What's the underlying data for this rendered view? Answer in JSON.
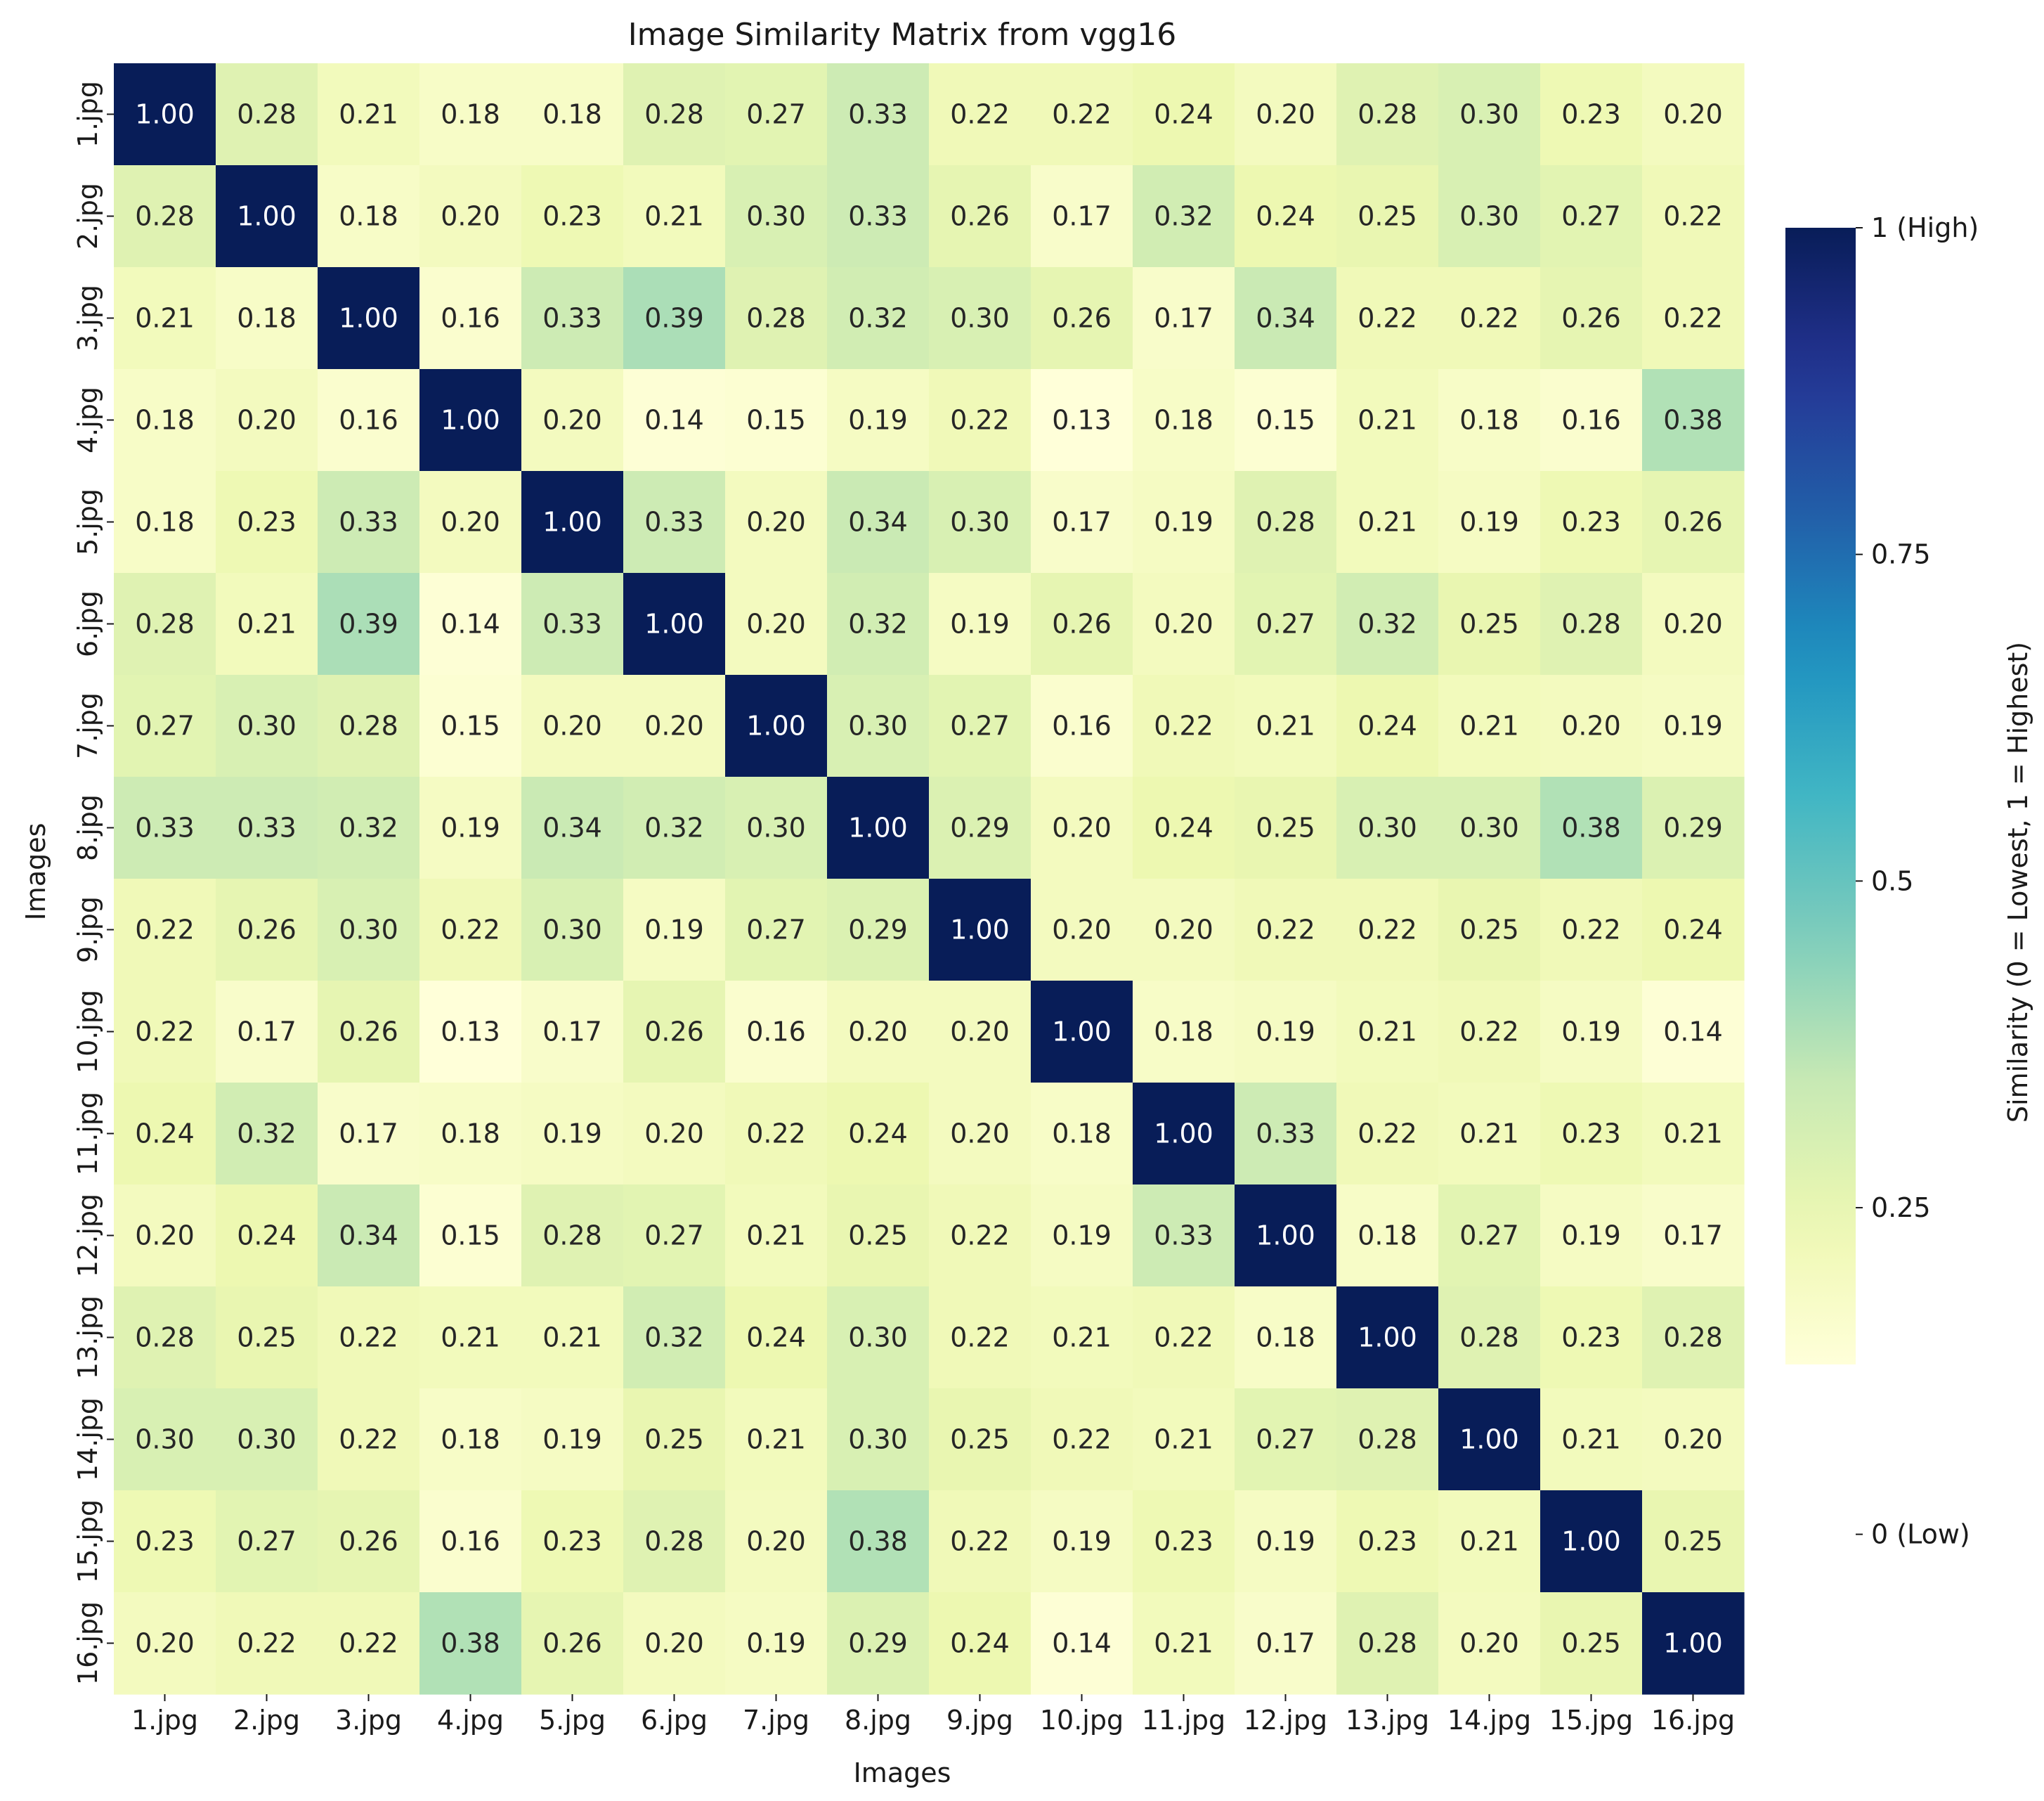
{
  "chart_data": {
    "type": "heatmap",
    "title": "Image Similarity Matrix from vgg16",
    "xlabel": "Images",
    "ylabel": "Images",
    "rows": [
      "1.jpg",
      "2.jpg",
      "3.jpg",
      "4.jpg",
      "5.jpg",
      "6.jpg",
      "7.jpg",
      "8.jpg",
      "9.jpg",
      "10.jpg",
      "11.jpg",
      "12.jpg",
      "13.jpg",
      "14.jpg",
      "15.jpg",
      "16.jpg"
    ],
    "columns": [
      "1.jpg",
      "2.jpg",
      "3.jpg",
      "4.jpg",
      "5.jpg",
      "6.jpg",
      "7.jpg",
      "8.jpg",
      "9.jpg",
      "10.jpg",
      "11.jpg",
      "12.jpg",
      "13.jpg",
      "14.jpg",
      "15.jpg",
      "16.jpg"
    ],
    "values": [
      [
        1.0,
        0.28,
        0.21,
        0.18,
        0.18,
        0.28,
        0.27,
        0.33,
        0.22,
        0.22,
        0.24,
        0.2,
        0.28,
        0.3,
        0.23,
        0.2
      ],
      [
        0.28,
        1.0,
        0.18,
        0.2,
        0.23,
        0.21,
        0.3,
        0.33,
        0.26,
        0.17,
        0.32,
        0.24,
        0.25,
        0.3,
        0.27,
        0.22
      ],
      [
        0.21,
        0.18,
        1.0,
        0.16,
        0.33,
        0.39,
        0.28,
        0.32,
        0.3,
        0.26,
        0.17,
        0.34,
        0.22,
        0.22,
        0.26,
        0.22
      ],
      [
        0.18,
        0.2,
        0.16,
        1.0,
        0.2,
        0.14,
        0.15,
        0.19,
        0.22,
        0.13,
        0.18,
        0.15,
        0.21,
        0.18,
        0.16,
        0.38
      ],
      [
        0.18,
        0.23,
        0.33,
        0.2,
        1.0,
        0.33,
        0.2,
        0.34,
        0.3,
        0.17,
        0.19,
        0.28,
        0.21,
        0.19,
        0.23,
        0.26
      ],
      [
        0.28,
        0.21,
        0.39,
        0.14,
        0.33,
        1.0,
        0.2,
        0.32,
        0.19,
        0.26,
        0.2,
        0.27,
        0.32,
        0.25,
        0.28,
        0.2
      ],
      [
        0.27,
        0.3,
        0.28,
        0.15,
        0.2,
        0.2,
        1.0,
        0.3,
        0.27,
        0.16,
        0.22,
        0.21,
        0.24,
        0.21,
        0.2,
        0.19
      ],
      [
        0.33,
        0.33,
        0.32,
        0.19,
        0.34,
        0.32,
        0.3,
        1.0,
        0.29,
        0.2,
        0.24,
        0.25,
        0.3,
        0.3,
        0.38,
        0.29
      ],
      [
        0.22,
        0.26,
        0.3,
        0.22,
        0.3,
        0.19,
        0.27,
        0.29,
        1.0,
        0.2,
        0.2,
        0.22,
        0.22,
        0.25,
        0.22,
        0.24
      ],
      [
        0.22,
        0.17,
        0.26,
        0.13,
        0.17,
        0.26,
        0.16,
        0.2,
        0.2,
        1.0,
        0.18,
        0.19,
        0.21,
        0.22,
        0.19,
        0.14
      ],
      [
        0.24,
        0.32,
        0.17,
        0.18,
        0.19,
        0.2,
        0.22,
        0.24,
        0.2,
        0.18,
        1.0,
        0.33,
        0.22,
        0.21,
        0.23,
        0.21
      ],
      [
        0.2,
        0.24,
        0.34,
        0.15,
        0.28,
        0.27,
        0.21,
        0.25,
        0.22,
        0.19,
        0.33,
        1.0,
        0.18,
        0.27,
        0.19,
        0.17
      ],
      [
        0.28,
        0.25,
        0.22,
        0.21,
        0.21,
        0.32,
        0.24,
        0.3,
        0.22,
        0.21,
        0.22,
        0.18,
        1.0,
        0.28,
        0.23,
        0.28
      ],
      [
        0.3,
        0.3,
        0.22,
        0.18,
        0.19,
        0.25,
        0.21,
        0.3,
        0.25,
        0.22,
        0.21,
        0.27,
        0.28,
        1.0,
        0.21,
        0.2
      ],
      [
        0.23,
        0.27,
        0.26,
        0.16,
        0.23,
        0.28,
        0.2,
        0.38,
        0.22,
        0.19,
        0.23,
        0.19,
        0.23,
        0.21,
        1.0,
        0.25
      ],
      [
        0.2,
        0.22,
        0.22,
        0.38,
        0.26,
        0.2,
        0.19,
        0.29,
        0.24,
        0.14,
        0.21,
        0.17,
        0.28,
        0.2,
        0.25,
        1.0
      ]
    ],
    "colormap": "YlGnBu",
    "vmin": 0.13,
    "vmax": 1.0,
    "colorbar": {
      "label": "Similarity (0 = Lowest, 1 = Highest)",
      "ticks": [
        {
          "value": 1.0,
          "label": "1 (High)"
        },
        {
          "value": 0.75,
          "label": "0.75"
        },
        {
          "value": 0.5,
          "label": "0.5"
        },
        {
          "value": 0.25,
          "label": "0.25"
        },
        {
          "value": 0.0,
          "label": "0 (Low)"
        }
      ]
    },
    "annotation_format": "0.00",
    "grid": false
  }
}
